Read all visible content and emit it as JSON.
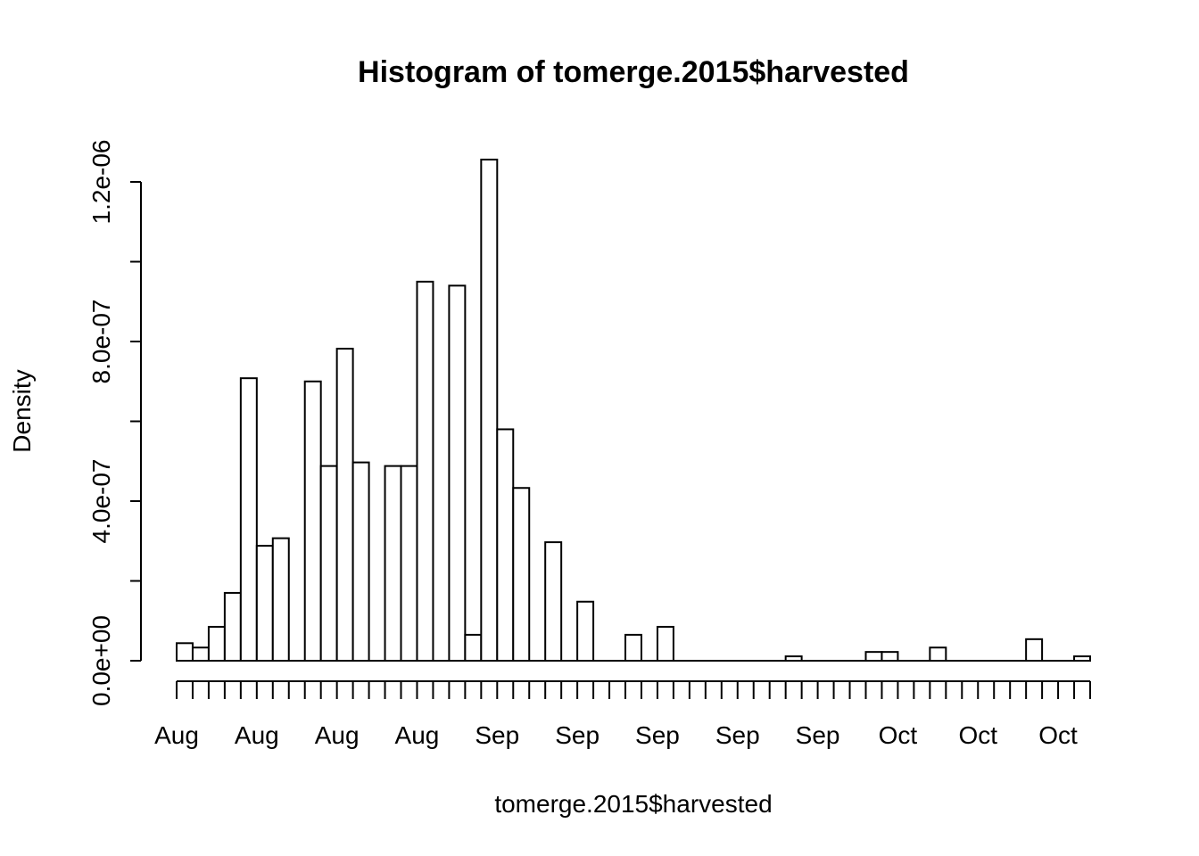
{
  "chart_data": {
    "type": "bar",
    "title": "Histogram of tomerge.2015$harvested",
    "xlabel": "tomerge.2015$harvested",
    "ylabel": "Density",
    "ylim": [
      0,
      1.25e-06
    ],
    "y_ticks": [
      0,
      2e-07,
      4e-07,
      6e-07,
      8e-07,
      1e-06,
      1.2e-06
    ],
    "y_tick_labels": [
      "0.0e+00",
      "",
      "4.0e-07",
      "",
      "8.0e-07",
      "",
      "1.2e-06"
    ],
    "x_tick_labels": [
      "Aug",
      "Aug",
      "Aug",
      "Aug",
      "Sep",
      "Sep",
      "Sep",
      "Sep",
      "Sep",
      "Oct",
      "Oct",
      "Oct"
    ],
    "bin_count": 57,
    "values": [
      4.4e-08,
      3.3e-08,
      8.5e-08,
      1.7e-07,
      7.08e-07,
      2.88e-07,
      3.07e-07,
      0,
      7e-07,
      4.88e-07,
      7.82e-07,
      4.97e-07,
      0,
      4.88e-07,
      4.88e-07,
      9.5e-07,
      0,
      9.4e-07,
      6.5e-08,
      1.256e-06,
      5.8e-07,
      4.33e-07,
      0,
      2.97e-07,
      0,
      1.48e-07,
      0,
      0,
      6.5e-08,
      0,
      8.5e-08,
      0,
      0,
      0,
      0,
      0,
      0,
      0,
      1.1e-08,
      0,
      0,
      0,
      0,
      2.2e-08,
      2.2e-08,
      0,
      0,
      3.3e-08,
      0,
      0,
      0,
      0,
      0,
      5.4e-08,
      0,
      0,
      1.1e-08
    ]
  }
}
